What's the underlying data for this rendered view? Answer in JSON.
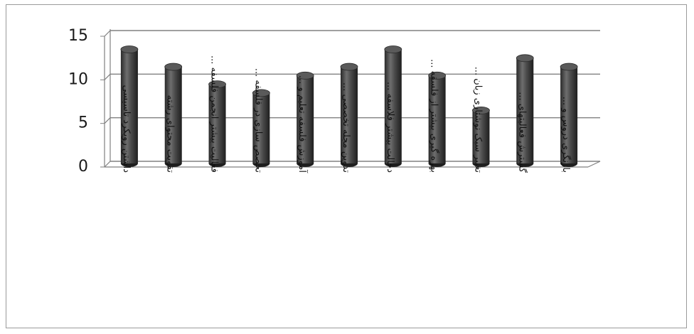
{
  "chart_data": {
    "type": "bar",
    "style": "3d-cylinder",
    "categories": [
      "داشتن رویکرد تاسیسی",
      "تقویت محتوای رشته",
      "فعالیت بیشتر انجمن فلسفه ...",
      "تخصص سازی در فلسفه ...",
      "آموزش فلسفه تعلیم و ...",
      "تدوین مجله تخصصی ...",
      "دخالت بیشتر فلاسفه ...",
      "بهره گیری بیشتر از فلسفه ...",
      "تغییر سبک نوشتاری زبان ...",
      "گسترش فعالیتهای ...",
      "بازنگری دروس و ..."
    ],
    "values": [
      13,
      11,
      9,
      8,
      10,
      11,
      13,
      10,
      6,
      12,
      11
    ],
    "ylim": [
      0,
      15
    ],
    "yticks": [
      0,
      5,
      10,
      15
    ],
    "grid": true,
    "colors": {
      "bar": "#4a4a4a",
      "bar_highlight": "#8a8a8a",
      "bar_shadow": "#1e1e1e",
      "grid": "#808080"
    }
  }
}
